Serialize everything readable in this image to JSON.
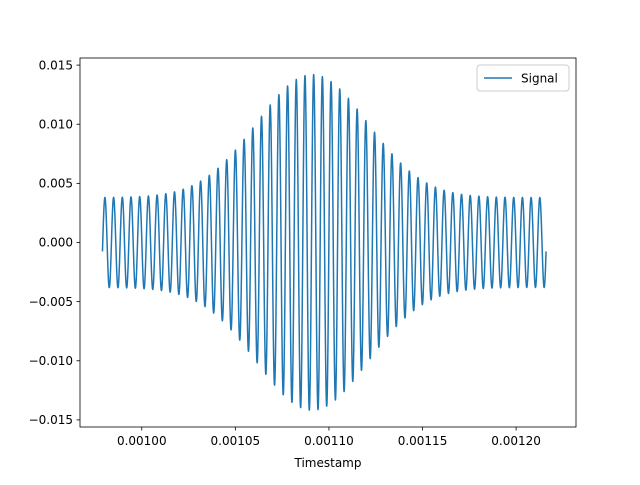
{
  "chart_data": {
    "type": "line",
    "title": "",
    "xlabel": "Timestamp",
    "ylabel": "",
    "xlim": [
      0.000967,
      0.001232
    ],
    "ylim": [
      -0.0156,
      0.0156
    ],
    "xticks": [
      {
        "value": 0.001,
        "label": "0.00100"
      },
      {
        "value": 0.00105,
        "label": "0.00105"
      },
      {
        "value": 0.0011,
        "label": "0.00110"
      },
      {
        "value": 0.00115,
        "label": "0.00115"
      },
      {
        "value": 0.0012,
        "label": "0.00120"
      }
    ],
    "yticks": [
      {
        "value": 0.015,
        "label": "0.015"
      },
      {
        "value": 0.01,
        "label": "0.010"
      },
      {
        "value": 0.005,
        "label": "0.005"
      },
      {
        "value": 0.0,
        "label": "0.000"
      },
      {
        "value": -0.005,
        "label": "−0.005"
      },
      {
        "value": -0.01,
        "label": "−0.010"
      },
      {
        "value": -0.015,
        "label": "−0.015"
      }
    ],
    "grid": false,
    "legend": {
      "position": "top-right"
    },
    "series": [
      {
        "name": "Signal",
        "color": "#1f77b4",
        "x_start": 0.000979,
        "x_end": 0.001216,
        "cycles": 51,
        "envelope": {
          "edge_amplitude": 0.0038,
          "peak_amplitude": 0.0142,
          "peak_x": 0.001091,
          "width": 4.2e-05
        }
      }
    ]
  }
}
